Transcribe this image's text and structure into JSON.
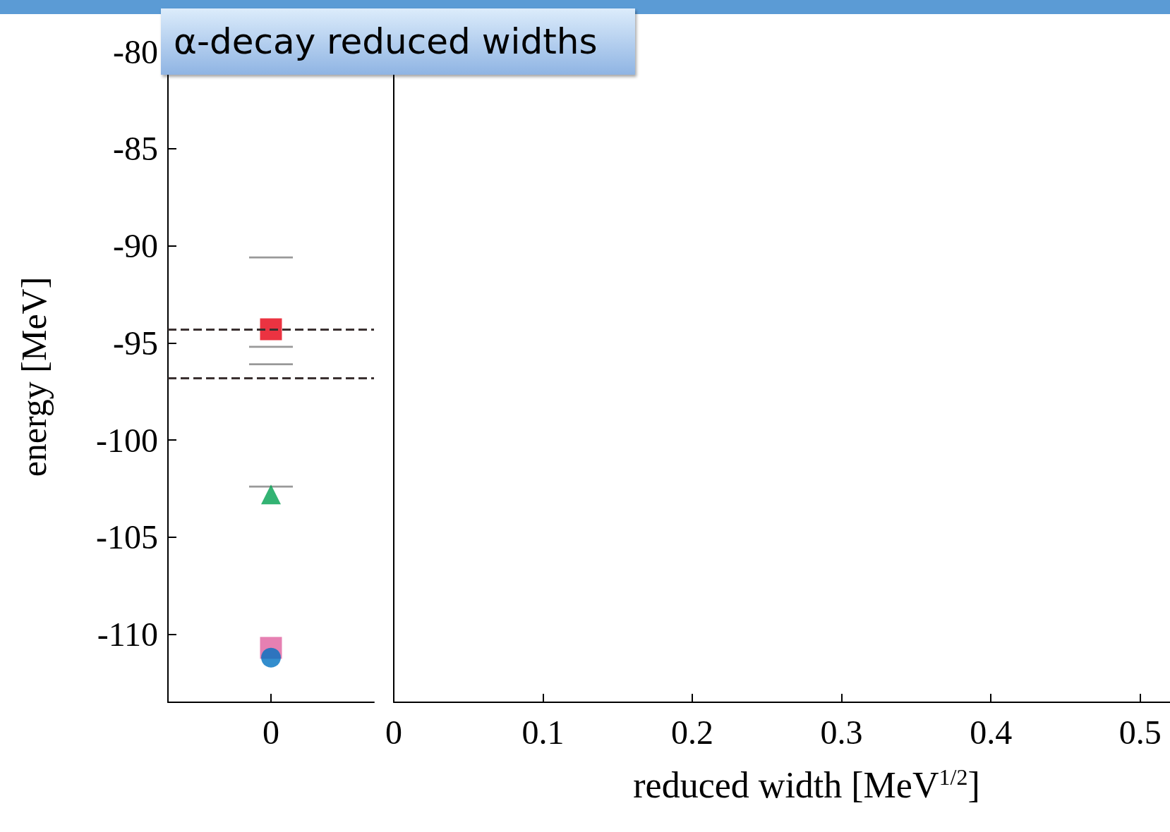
{
  "chart_data": [
    {
      "type": "scatter",
      "title": "α-decay reduced widths",
      "ylabel": "energy [MeV]",
      "categories": [
        "0"
      ],
      "ylim": [
        -113.5,
        -80
      ],
      "yticks": [
        -110,
        -105,
        -100,
        -95,
        -90,
        -85,
        -80
      ],
      "grid": false,
      "series": [
        {
          "type": "bar",
          "color": "#999999",
          "base": [
            -90.65
          ],
          "values": [
            0.1
          ]
        },
        {
          "type": "bar",
          "color": "#999999",
          "base": [
            -95.25
          ],
          "values": [
            0.1
          ]
        },
        {
          "type": "bar",
          "color": "#999999",
          "base": [
            -96.15
          ],
          "values": [
            0.1
          ]
        },
        {
          "type": "bar",
          "color": "#999999",
          "base": [
            -102.45
          ],
          "values": [
            0.1
          ]
        },
        {
          "marker": "square",
          "color": "#e0609f",
          "values": [
            -110.7
          ]
        },
        {
          "marker": "circle",
          "color": "#0070c0",
          "values": [
            -111.2
          ]
        },
        {
          "marker": "triangle",
          "color": "#00a050",
          "values": [
            -102.8
          ]
        },
        {
          "marker": "square",
          "color": "#e60012",
          "values": [
            -94.3
          ]
        }
      ],
      "ref_lines": [
        {
          "axis": "y",
          "value": -94.3,
          "color": "#3a3030",
          "line_style": "dashed"
        },
        {
          "axis": "y",
          "value": -96.8,
          "color": "#3a3030",
          "line_style": "dashed"
        }
      ]
    },
    {
      "type": "scatter",
      "xlabel": "reduced width [MeV$^{1/2}$]",
      "xlim": [
        0,
        0.52
      ],
      "xticks": [
        0,
        0.1,
        0.2,
        0.3,
        0.4,
        0.5
      ],
      "ylim": [
        -113.5,
        -80
      ],
      "tick_labels": "x",
      "grid": false
    }
  ]
}
